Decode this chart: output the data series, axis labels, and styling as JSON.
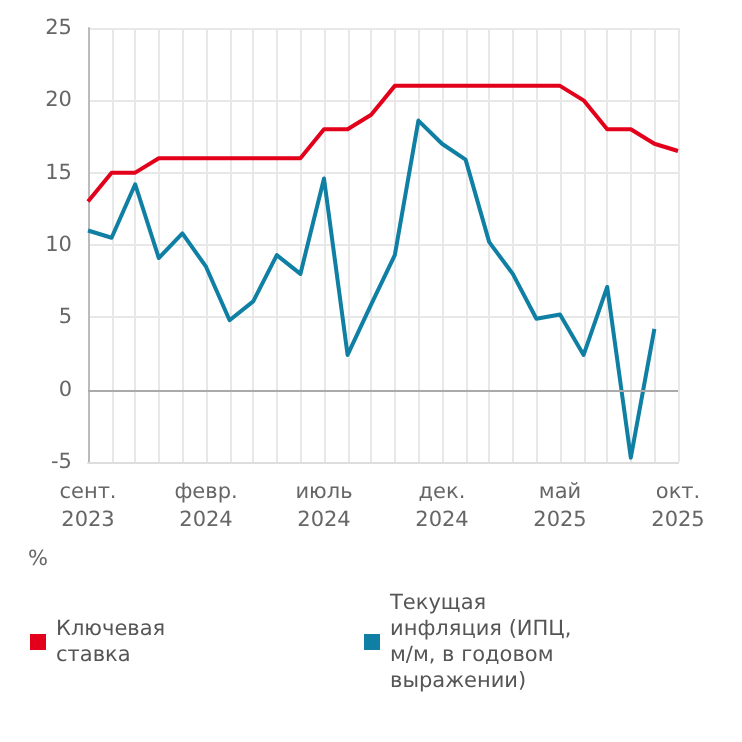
{
  "chart_data": {
    "type": "line",
    "ylabel": "%",
    "categories": [
      "сент.\n2023",
      null,
      null,
      null,
      null,
      "февр.\n2024",
      null,
      null,
      null,
      null,
      "июль\n2024",
      null,
      null,
      null,
      null,
      "дек.\n2024",
      null,
      null,
      null,
      null,
      "май\n2025",
      null,
      null,
      null,
      null,
      "окт.\n2025"
    ],
    "series": [
      {
        "name": "Ключевая ставка",
        "color": "#e3001b",
        "values": [
          13,
          15,
          15,
          16,
          16,
          16,
          16,
          16,
          16,
          16,
          18,
          18,
          19,
          21,
          21,
          21,
          21,
          21,
          21,
          21,
          21,
          20,
          18,
          18,
          17,
          16.5
        ]
      },
      {
        "name": "Текущая инфляция (ИПЦ, м/м, в годовом выражении)",
        "color": "#0f7fa3",
        "values": [
          11,
          10.5,
          14.2,
          9.1,
          10.8,
          8.5,
          4.8,
          6.1,
          9.3,
          8,
          14.6,
          2.4,
          5.9,
          9.3,
          18.6,
          17,
          15.9,
          10.2,
          8,
          4.9,
          5.2,
          2.4,
          7.1,
          -4.7,
          4.2,
          null
        ]
      }
    ],
    "ylim": [
      -5,
      25
    ],
    "yticks": [
      -5,
      0,
      5,
      10,
      15,
      20,
      25
    ],
    "grid": true,
    "legend": "bottom",
    "marker": "none",
    "line_style": "solid"
  }
}
